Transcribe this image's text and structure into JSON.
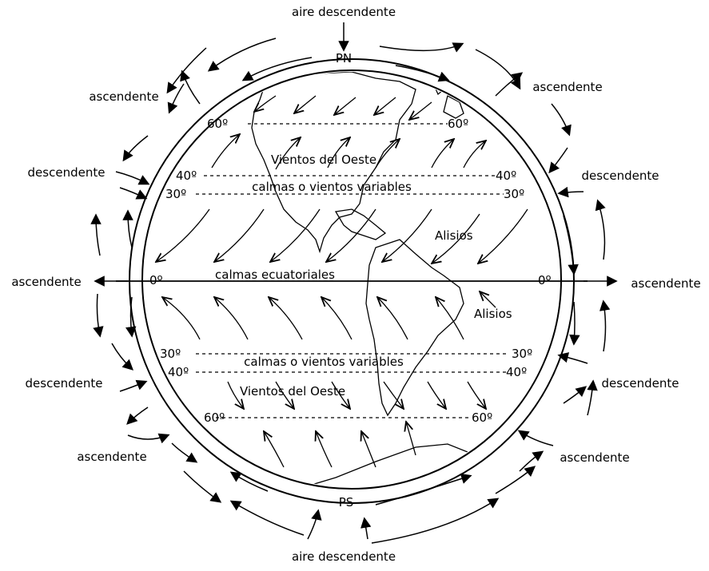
{
  "labels": {
    "top_air": "aire descendente",
    "bottom_air": "aire descendente",
    "north_pole": "PN",
    "south_pole": "PS",
    "ascendente": "ascendente",
    "descendente": "descendente"
  },
  "latitudes": {
    "l60": "60º",
    "l40": "40º",
    "l30": "30º",
    "l0": "0º"
  },
  "zones": {
    "westerlies_north": "Vientos del Oeste",
    "calms_north": "calmas o vientos variables",
    "trades_north": "Alisios",
    "equatorial": "calmas ecuatoriales",
    "trades_south": "Alisios",
    "calms_south": "calmas o vientos variables",
    "westerlies_south": "Vientos del Oeste"
  },
  "colors": {
    "ink": "#000000",
    "background": "#ffffff"
  }
}
